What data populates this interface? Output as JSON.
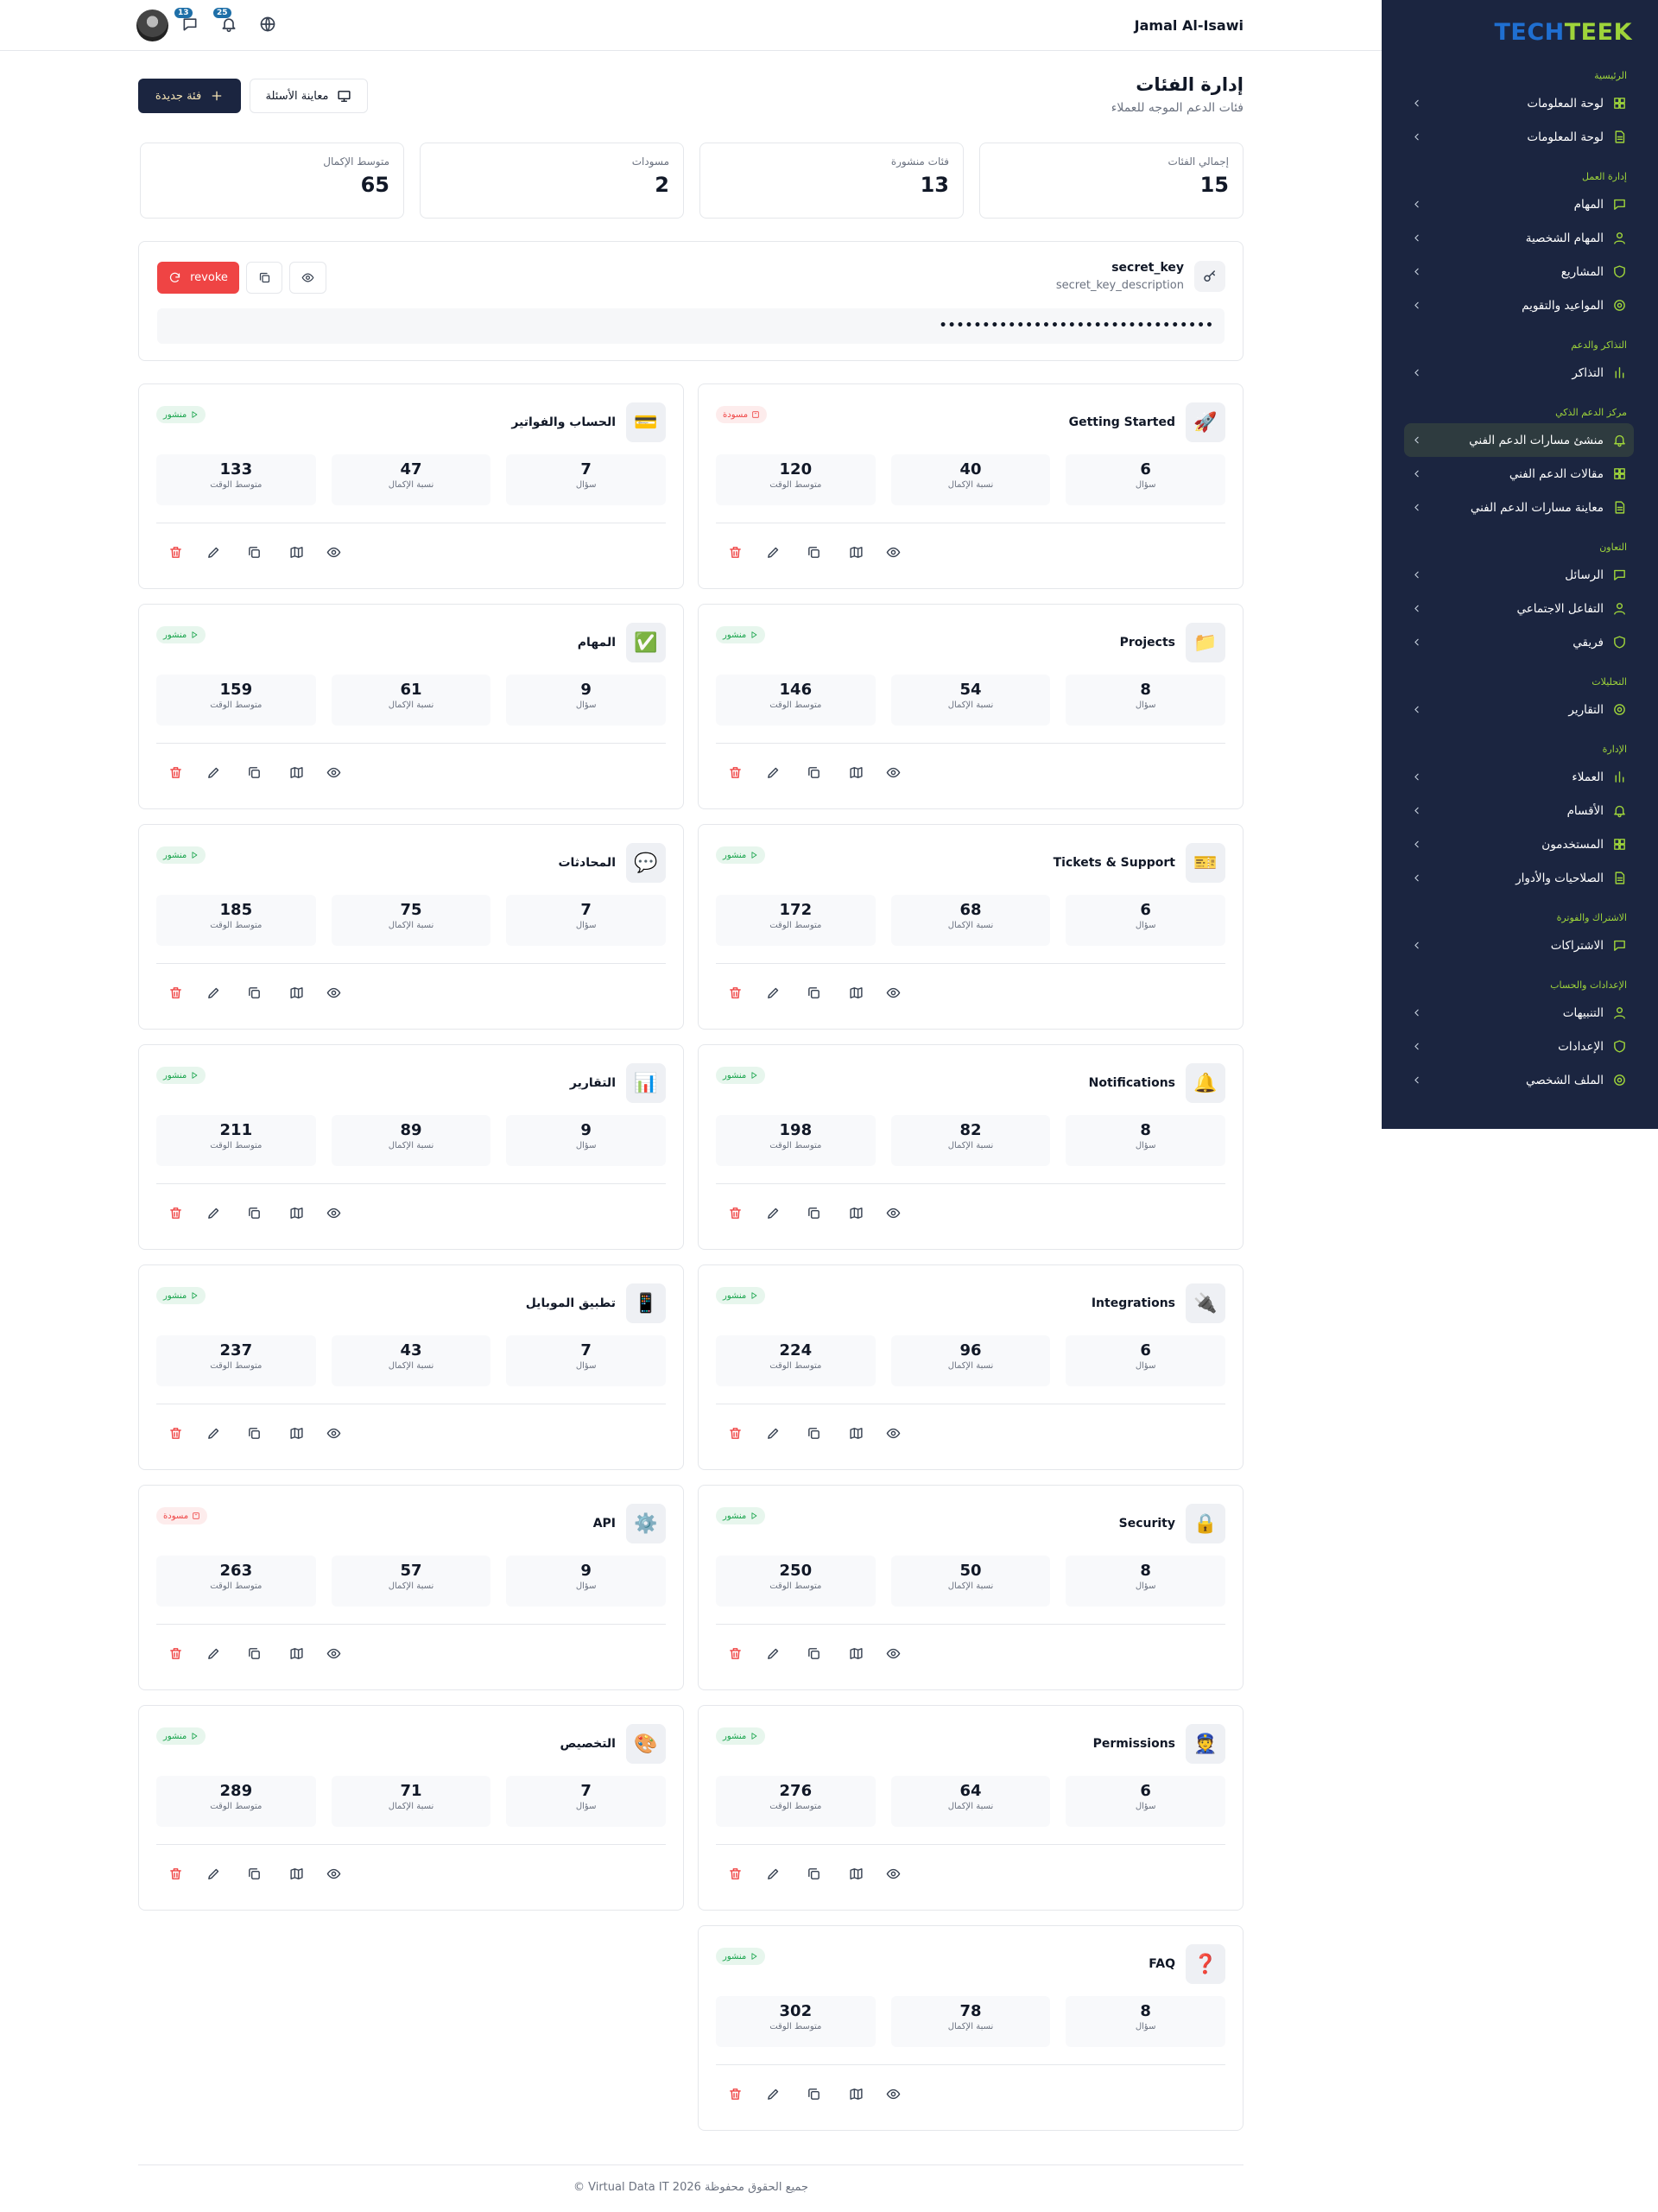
{
  "header": {
    "user_name": "Jamal Al-Isawi",
    "messages_count": 13,
    "notifications_count": 25
  },
  "sidebar": {
    "logo": [
      "TECH",
      "TEEK"
    ],
    "sections": [
      {
        "title": "الرئيسية",
        "items": [
          {
            "label": "لوحة المعلومات"
          },
          {
            "label": "لوحة المعلومات"
          }
        ]
      },
      {
        "title": "إدارة العمل",
        "items": [
          {
            "label": "المهام"
          },
          {
            "label": "المهام الشخصية"
          },
          {
            "label": "المشاريع"
          },
          {
            "label": "المواعيد والتقويم"
          }
        ]
      },
      {
        "title": "التذاكر والدعم",
        "items": [
          {
            "label": "التذاكر"
          }
        ]
      },
      {
        "title": "مركز الدعم الذكي",
        "items": [
          {
            "label": "منشئ مسارات الدعم الفني",
            "active": true
          },
          {
            "label": "مقالات الدعم الفني"
          },
          {
            "label": "معاينة مسارات الدعم الفني"
          }
        ]
      },
      {
        "title": "التعاون",
        "items": [
          {
            "label": "الرسائل"
          },
          {
            "label": "التفاعل الاجتماعي"
          },
          {
            "label": "فريقي"
          }
        ]
      },
      {
        "title": "التحليلات",
        "items": [
          {
            "label": "التقارير"
          }
        ]
      },
      {
        "title": "الإدارة",
        "items": [
          {
            "label": "العملاء"
          },
          {
            "label": "الأقسام"
          },
          {
            "label": "المستخدمون"
          },
          {
            "label": "الصلاحيات والأدوار"
          }
        ]
      },
      {
        "title": "الاشتراك والفوترة",
        "items": [
          {
            "label": "الاشتراكات"
          }
        ]
      },
      {
        "title": "الإعدادات والحساب",
        "items": [
          {
            "label": "التنبيهات"
          },
          {
            "label": "الإعدادات"
          },
          {
            "label": "الملف الشخصي"
          }
        ]
      }
    ]
  },
  "page": {
    "title": "إدارة الفئات",
    "subtitle": "فئات الدعم الموجه للعملاء",
    "new_button": "فئة جديدة",
    "preview_button": "معاينة الأسئلة"
  },
  "stats": [
    {
      "label": "إجمالي الفئات",
      "value": 15
    },
    {
      "label": "فئات منشورة",
      "value": 13
    },
    {
      "label": "مسودات",
      "value": 2
    },
    {
      "label": "متوسط الإكمال",
      "value": 65
    }
  ],
  "secret_key": {
    "title": "secret_key",
    "description": "secret_key_description",
    "masked": "••••••••••••••••••••••••••••••••",
    "revoke": "revoke"
  },
  "stat_labels": {
    "questions": "سؤال",
    "completion": "نسبة الإكمال",
    "time": "متوسط الوقت"
  },
  "categories": [
    {
      "name": "Getting Started",
      "icon": "🚀",
      "status": "مسودة",
      "badge_color": "#ef4444",
      "questions": 6,
      "completion": 40,
      "time": 120
    },
    {
      "name": "الحساب والفواتير",
      "icon": "💳",
      "status": "منشور",
      "badge_color": "#16a34a",
      "questions": 7,
      "completion": 47,
      "time": 133
    },
    {
      "name": "Projects",
      "icon": "📁",
      "status": "منشور",
      "badge_color": "#16a34a",
      "questions": 8,
      "completion": 54,
      "time": 146
    },
    {
      "name": "المهام",
      "icon": "✅",
      "status": "منشور",
      "badge_color": "#16a34a",
      "questions": 9,
      "completion": 61,
      "time": 159
    },
    {
      "name": "Tickets & Support",
      "icon": "🎫",
      "status": "منشور",
      "badge_color": "#16a34a",
      "questions": 6,
      "completion": 68,
      "time": 172
    },
    {
      "name": "المحادثات",
      "icon": "💬",
      "status": "منشور",
      "badge_color": "#16a34a",
      "questions": 7,
      "completion": 75,
      "time": 185
    },
    {
      "name": "Notifications",
      "icon": "🔔",
      "status": "منشور",
      "badge_color": "#16a34a",
      "questions": 8,
      "completion": 82,
      "time": 198
    },
    {
      "name": "التقارير",
      "icon": "📊",
      "status": "منشور",
      "badge_color": "#16a34a",
      "questions": 9,
      "completion": 89,
      "time": 211
    },
    {
      "name": "Integrations",
      "icon": "🔌",
      "status": "منشور",
      "badge_color": "#16a34a",
      "questions": 6,
      "completion": 96,
      "time": 224
    },
    {
      "name": "تطبيق الموبايل",
      "icon": "📱",
      "status": "منشور",
      "badge_color": "#16a34a",
      "questions": 7,
      "completion": 43,
      "time": 237
    },
    {
      "name": "Security",
      "icon": "🔒",
      "status": "منشور",
      "badge_color": "#16a34a",
      "questions": 8,
      "completion": 50,
      "time": 250
    },
    {
      "name": "API",
      "icon": "⚙️",
      "status": "مسودة",
      "badge_color": "#ef4444",
      "questions": 9,
      "completion": 57,
      "time": 263
    },
    {
      "name": "Permissions",
      "icon": "👮",
      "status": "منشور",
      "badge_color": "#16a34a",
      "questions": 6,
      "completion": 64,
      "time": 276
    },
    {
      "name": "التخصيص",
      "icon": "🎨",
      "status": "منشور",
      "badge_color": "#16a34a",
      "questions": 7,
      "completion": 71,
      "time": 289
    },
    {
      "name": "FAQ",
      "icon": "❓",
      "status": "منشور",
      "badge_color": "#16a34a",
      "questions": 8,
      "completion": 78,
      "time": 302
    }
  ],
  "footer": "© Virtual Data IT 2026 جميع الحقوق محفوظة"
}
